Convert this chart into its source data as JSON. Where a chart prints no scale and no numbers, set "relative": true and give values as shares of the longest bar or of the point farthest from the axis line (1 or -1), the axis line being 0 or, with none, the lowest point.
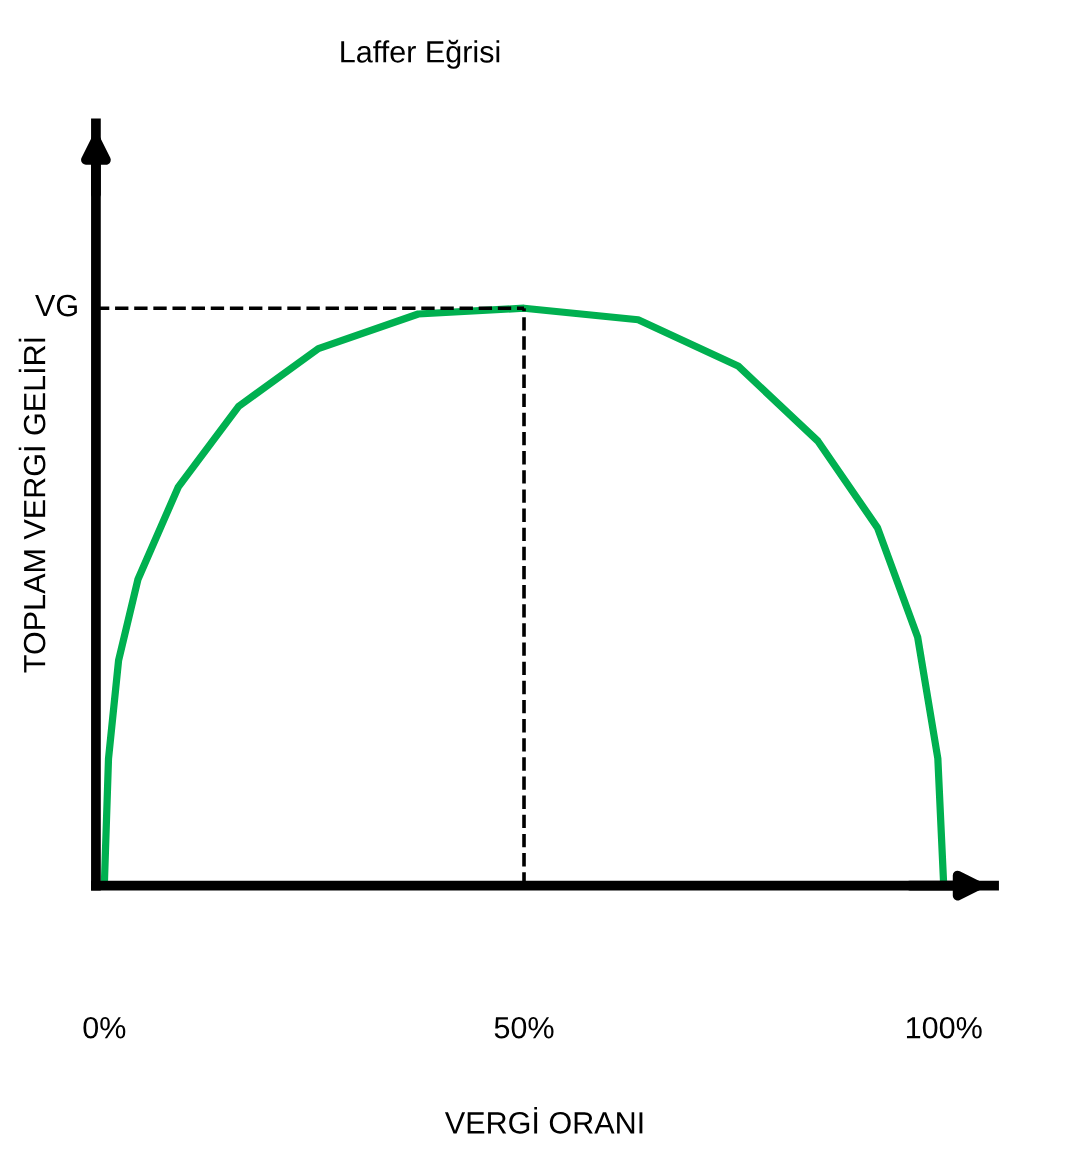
{
  "chart_data": {
    "type": "line",
    "title": "Laffer Eğrisi",
    "xlabel": "VERGİ ORANI",
    "ylabel": "TOPLAM VERGİ GELİRİ",
    "relative": true,
    "x": [
      0,
      0.5,
      1.7,
      4,
      8.8,
      16,
      25.5,
      37.4,
      50,
      63.6,
      75.5,
      85,
      92.1,
      96.9,
      99.3,
      100
    ],
    "series": [
      {
        "color": "#00b050",
        "values": [
          0,
          0.22,
          0.39,
          0.53,
          0.69,
          0.83,
          0.93,
          0.99,
          1,
          0.98,
          0.9,
          0.77,
          0.62,
          0.43,
          0.22,
          0
        ]
      }
    ],
    "xlim": [
      -1,
      106
    ],
    "xticks": [
      {
        "value": 0,
        "label": "0%"
      },
      {
        "value": 50,
        "label": "50%"
      },
      {
        "value": 100,
        "label": "100%"
      }
    ],
    "ref_lines": [
      {
        "axis": "y",
        "value": 1,
        "label": "VG",
        "line_style": "dashed",
        "color": "#000000"
      },
      {
        "axis": "x",
        "value": 50,
        "label": null,
        "line_style": "dashed",
        "color": "#000000"
      }
    ],
    "grid": false,
    "legend": false,
    "marker": "none",
    "line_style": "solid"
  }
}
